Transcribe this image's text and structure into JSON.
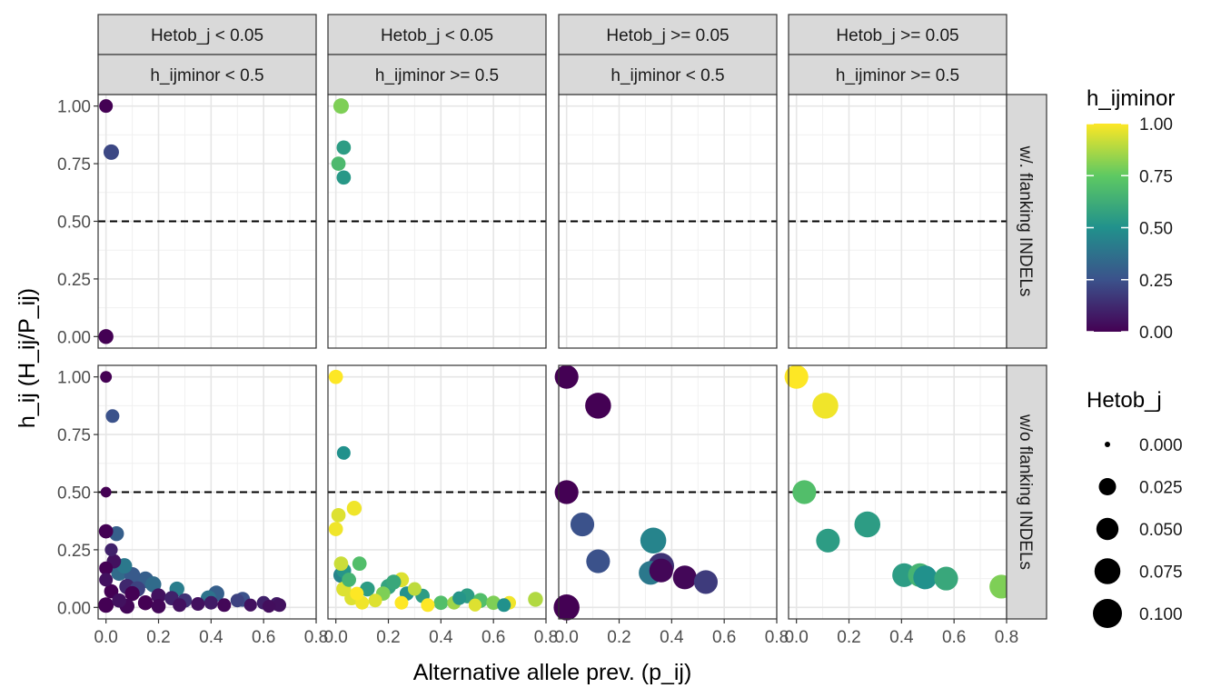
{
  "chart_data": {
    "type": "scatter",
    "xlabel": "Alternative allele prev. (p_ij)",
    "ylabel": "h_ij (H_ij/P_ij)",
    "xlim": [
      -0.03,
      0.8
    ],
    "ylim": [
      -0.05,
      1.05
    ],
    "x_ticks": [
      "0.0",
      "0.2",
      "0.4",
      "0.6",
      "0.8"
    ],
    "y_ticks": [
      "0.00",
      "0.25",
      "0.50",
      "0.75",
      "1.00"
    ],
    "grid": true,
    "reference_line": {
      "y": 0.5,
      "style": "dashed"
    },
    "col_strips": [
      {
        "top": "Hetob_j < 0.05",
        "bottom": "h_ijminor < 0.5"
      },
      {
        "top": "Hetob_j < 0.05",
        "bottom": "h_ijminor >= 0.5"
      },
      {
        "top": "Hetob_j >= 0.05",
        "bottom": "h_ijminor < 0.5"
      },
      {
        "top": "Hetob_j >= 0.05",
        "bottom": "h_ijminor >= 0.5"
      }
    ],
    "row_strips": [
      "w/. flanking INDELs",
      "w/o flanking INDELs"
    ],
    "color_legend": {
      "title": "h_ijminor",
      "ticks": [
        "1.00",
        "0.75",
        "0.50",
        "0.25",
        "0.00"
      ],
      "range": [
        0,
        1
      ]
    },
    "size_legend": {
      "title": "Hetob_j",
      "labels": [
        "0.000",
        "0.025",
        "0.050",
        "0.075",
        "0.100"
      ],
      "values": [
        0,
        0.025,
        0.05,
        0.075,
        0.1
      ]
    },
    "panels": [
      {
        "row": 0,
        "col": 0,
        "points": [
          [
            0.0,
            1.0,
            0.0,
            0.012
          ],
          [
            0.02,
            0.8,
            0.22,
            0.018
          ],
          [
            0.0,
            0.0,
            0.0,
            0.016
          ]
        ]
      },
      {
        "row": 0,
        "col": 1,
        "points": [
          [
            0.02,
            1.0,
            0.8,
            0.018
          ],
          [
            0.03,
            0.82,
            0.55,
            0.014
          ],
          [
            0.01,
            0.75,
            0.68,
            0.014
          ],
          [
            0.03,
            0.69,
            0.53,
            0.014
          ]
        ]
      },
      {
        "row": 0,
        "col": 2,
        "points": []
      },
      {
        "row": 0,
        "col": 3,
        "points": []
      },
      {
        "row": 1,
        "col": 0,
        "points": [
          [
            0.0,
            1.0,
            0.0,
            0.007
          ],
          [
            0.025,
            0.83,
            0.25,
            0.012
          ],
          [
            0.0,
            0.5,
            0.0,
            0.005
          ],
          [
            0.0,
            0.33,
            0.0,
            0.014
          ],
          [
            0.04,
            0.32,
            0.3,
            0.016
          ],
          [
            0.02,
            0.25,
            0.1,
            0.01
          ],
          [
            0.0,
            0.17,
            0.0,
            0.012
          ],
          [
            0.03,
            0.2,
            0.05,
            0.014
          ],
          [
            0.07,
            0.18,
            0.4,
            0.018
          ],
          [
            0.0,
            0.12,
            0.05,
            0.012
          ],
          [
            0.05,
            0.15,
            0.35,
            0.02
          ],
          [
            0.1,
            0.14,
            0.28,
            0.02
          ],
          [
            0.15,
            0.12,
            0.3,
            0.022
          ],
          [
            0.18,
            0.1,
            0.35,
            0.02
          ],
          [
            0.08,
            0.09,
            0.12,
            0.018
          ],
          [
            0.12,
            0.08,
            0.2,
            0.018
          ],
          [
            0.02,
            0.07,
            0.0,
            0.014
          ],
          [
            0.1,
            0.06,
            0.0,
            0.016
          ],
          [
            0.27,
            0.08,
            0.42,
            0.016
          ],
          [
            0.42,
            0.06,
            0.3,
            0.02
          ],
          [
            0.2,
            0.05,
            0.05,
            0.016
          ],
          [
            0.25,
            0.04,
            0.1,
            0.014
          ],
          [
            0.3,
            0.03,
            0.15,
            0.014
          ],
          [
            0.39,
            0.04,
            0.38,
            0.018
          ],
          [
            0.5,
            0.03,
            0.2,
            0.012
          ],
          [
            0.52,
            0.035,
            0.25,
            0.016
          ],
          [
            0.6,
            0.02,
            0.1,
            0.012
          ],
          [
            0.65,
            0.015,
            0.08,
            0.012
          ],
          [
            0.05,
            0.03,
            0.05,
            0.014
          ],
          [
            0.15,
            0.02,
            0.0,
            0.016
          ],
          [
            0.35,
            0.015,
            0.05,
            0.012
          ],
          [
            0.45,
            0.01,
            0.02,
            0.012
          ],
          [
            0.55,
            0.01,
            0.05,
            0.01
          ],
          [
            0.0,
            0.01,
            0.0,
            0.018
          ],
          [
            0.08,
            0.005,
            0.02,
            0.016
          ],
          [
            0.2,
            0.005,
            0.02,
            0.014
          ],
          [
            0.28,
            0.01,
            0.05,
            0.012
          ],
          [
            0.62,
            0.005,
            0.04,
            0.01
          ],
          [
            0.66,
            0.01,
            0.05,
            0.012
          ],
          [
            0.4,
            0.02,
            0.08,
            0.012
          ]
        ]
      },
      {
        "row": 1,
        "col": 1,
        "points": [
          [
            0.0,
            1.0,
            1.0,
            0.014
          ],
          [
            0.03,
            0.67,
            0.5,
            0.012
          ],
          [
            0.07,
            0.43,
            0.98,
            0.016
          ],
          [
            0.01,
            0.4,
            0.95,
            0.014
          ],
          [
            0.0,
            0.34,
            0.98,
            0.014
          ],
          [
            0.02,
            0.19,
            0.92,
            0.014
          ],
          [
            0.09,
            0.19,
            0.7,
            0.014
          ],
          [
            0.03,
            0.16,
            0.52,
            0.016
          ],
          [
            0.02,
            0.14,
            0.45,
            0.018
          ],
          [
            0.05,
            0.12,
            0.65,
            0.014
          ],
          [
            0.25,
            0.12,
            0.95,
            0.016
          ],
          [
            0.22,
            0.11,
            0.6,
            0.016
          ],
          [
            0.2,
            0.09,
            0.58,
            0.018
          ],
          [
            0.12,
            0.08,
            0.55,
            0.016
          ],
          [
            0.27,
            0.06,
            0.5,
            0.014
          ],
          [
            0.33,
            0.05,
            0.55,
            0.014
          ],
          [
            0.3,
            0.08,
            0.9,
            0.012
          ],
          [
            0.18,
            0.06,
            0.8,
            0.014
          ],
          [
            0.03,
            0.08,
            0.95,
            0.016
          ],
          [
            0.06,
            0.04,
            0.95,
            0.014
          ],
          [
            0.5,
            0.05,
            0.55,
            0.016
          ],
          [
            0.55,
            0.03,
            0.7,
            0.016
          ],
          [
            0.6,
            0.02,
            0.8,
            0.014
          ],
          [
            0.76,
            0.035,
            0.88,
            0.016
          ],
          [
            0.66,
            0.02,
            0.98,
            0.012
          ],
          [
            0.64,
            0.01,
            0.5,
            0.012
          ],
          [
            0.45,
            0.02,
            0.85,
            0.012
          ],
          [
            0.4,
            0.02,
            0.7,
            0.014
          ],
          [
            0.35,
            0.01,
            1.0,
            0.012
          ],
          [
            0.25,
            0.02,
            1.0,
            0.012
          ],
          [
            0.15,
            0.03,
            0.95,
            0.012
          ],
          [
            0.1,
            0.02,
            0.98,
            0.012
          ],
          [
            0.08,
            0.06,
            1.0,
            0.012
          ],
          [
            0.47,
            0.04,
            0.52,
            0.012
          ],
          [
            0.53,
            0.01,
            0.95,
            0.01
          ]
        ]
      },
      {
        "row": 1,
        "col": 2,
        "points": [
          [
            0.0,
            1.0,
            0.0,
            0.06
          ],
          [
            0.12,
            0.875,
            0.0,
            0.075
          ],
          [
            0.0,
            0.5,
            0.0,
            0.06
          ],
          [
            0.06,
            0.36,
            0.25,
            0.06
          ],
          [
            0.0,
            0.0,
            0.0,
            0.075
          ],
          [
            0.12,
            0.2,
            0.25,
            0.06
          ],
          [
            0.33,
            0.29,
            0.45,
            0.075
          ],
          [
            0.36,
            0.18,
            0.15,
            0.075
          ],
          [
            0.32,
            0.15,
            0.4,
            0.06
          ],
          [
            0.36,
            0.16,
            0.02,
            0.06
          ],
          [
            0.45,
            0.13,
            0.02,
            0.06
          ],
          [
            0.53,
            0.11,
            0.18,
            0.06
          ]
        ]
      },
      {
        "row": 1,
        "col": 3,
        "points": [
          [
            0.0,
            1.0,
            1.0,
            0.06
          ],
          [
            0.11,
            0.875,
            0.98,
            0.075
          ],
          [
            0.03,
            0.5,
            0.7,
            0.06
          ],
          [
            0.12,
            0.29,
            0.55,
            0.06
          ],
          [
            0.27,
            0.36,
            0.55,
            0.075
          ],
          [
            0.41,
            0.14,
            0.55,
            0.06
          ],
          [
            0.47,
            0.14,
            0.65,
            0.06
          ],
          [
            0.49,
            0.13,
            0.5,
            0.06
          ],
          [
            0.57,
            0.125,
            0.6,
            0.06
          ],
          [
            0.78,
            0.09,
            0.8,
            0.06
          ]
        ]
      }
    ]
  }
}
